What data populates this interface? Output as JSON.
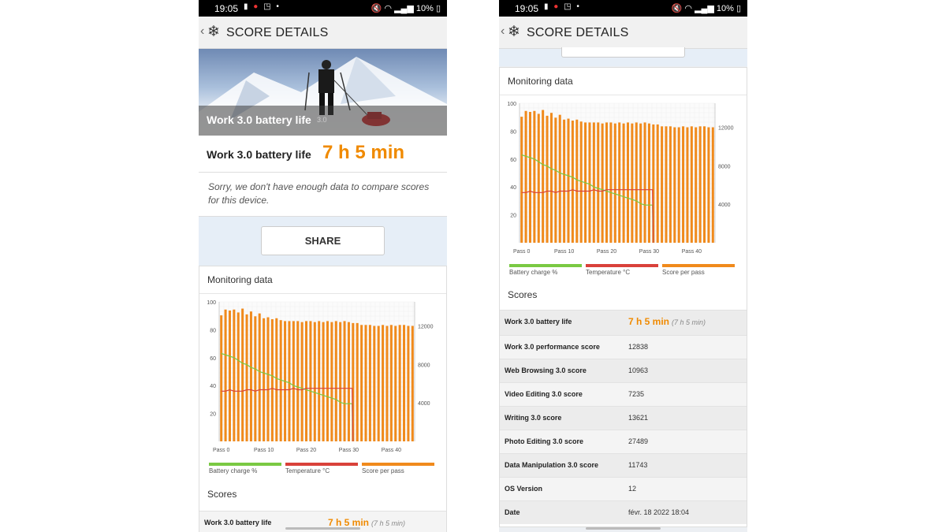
{
  "status": {
    "time": "19:05",
    "battery": "10%"
  },
  "appbar": {
    "title": "SCORE DETAILS"
  },
  "hero": {
    "label": "Work 3.0 battery life",
    "version": "3.0"
  },
  "result": {
    "label": "Work 3.0 battery life",
    "value": "7 h 5 min"
  },
  "notice": "Sorry, we don't have enough data to compare scores for this device.",
  "share_label": "SHARE",
  "monitoring": {
    "title": "Monitoring data"
  },
  "legend": [
    {
      "label": "Battery charge %",
      "color": "#7ac943"
    },
    {
      "label": "Temperature °C",
      "color": "#d9413a"
    },
    {
      "label": "Score per pass",
      "color": "#f08a1c"
    }
  ],
  "scores_heading": "Scores",
  "scores": [
    {
      "label": "Work 3.0 battery life",
      "value": "7 h 5 min",
      "sub": "(7 h 5 min)"
    },
    {
      "label": "Work 3.0 performance score",
      "value": "12838"
    },
    {
      "label": "Web Browsing 3.0 score",
      "value": "10963"
    },
    {
      "label": "Video Editing 3.0 score",
      "value": "7235"
    },
    {
      "label": "Writing 3.0 score",
      "value": "13621"
    },
    {
      "label": "Photo Editing 3.0 score",
      "value": "27489"
    },
    {
      "label": "Data Manipulation 3.0 score",
      "value": "11743"
    },
    {
      "label": "OS Version",
      "value": "12"
    },
    {
      "label": "Date",
      "value": "févr. 18 2022 18:04"
    }
  ],
  "chart_data": {
    "type": "bar",
    "x_tick_labels": [
      "Pass 0",
      "Pass 10",
      "Pass 20",
      "Pass 30",
      "Pass 40"
    ],
    "y_left_ticks": [
      20,
      40,
      60,
      80,
      100
    ],
    "y_right_ticks": [
      4000,
      8000,
      12000
    ],
    "y_left_range": [
      0,
      100
    ],
    "y_right_range": [
      0,
      14500
    ],
    "series": [
      {
        "name": "Score per pass",
        "axis": "right",
        "color": "#f08a1c",
        "values": [
          13100,
          13700,
          13600,
          13700,
          13400,
          13800,
          13200,
          13500,
          13000,
          13300,
          12800,
          12900,
          12700,
          12800,
          12600,
          12500,
          12500,
          12500,
          12500,
          12400,
          12500,
          12500,
          12400,
          12500,
          12400,
          12500,
          12400,
          12500,
          12400,
          12500,
          12400,
          12300,
          12300,
          12100,
          12100,
          12100,
          12000,
          12000,
          12100,
          12000,
          12100,
          12000,
          12100,
          12100,
          12000,
          12000
        ]
      },
      {
        "name": "Battery charge %",
        "axis": "left",
        "color": "#7ac943",
        "values": [
          63,
          62,
          61,
          60,
          58,
          56,
          55,
          53,
          52,
          50,
          49,
          48,
          47,
          45,
          44,
          43,
          42,
          40,
          39,
          38,
          37,
          36,
          35,
          34,
          33,
          32,
          31,
          30,
          28,
          27,
          27,
          0
        ]
      },
      {
        "name": "Temperature °C",
        "axis": "left",
        "color": "#d9413a",
        "values": [
          36,
          36,
          37,
          36,
          36,
          36,
          37,
          37,
          36,
          37,
          37,
          37,
          38,
          37,
          37,
          37,
          37,
          38,
          37,
          37,
          38,
          38,
          38,
          38,
          38,
          38,
          38,
          38,
          38,
          38,
          38,
          0
        ]
      }
    ]
  }
}
